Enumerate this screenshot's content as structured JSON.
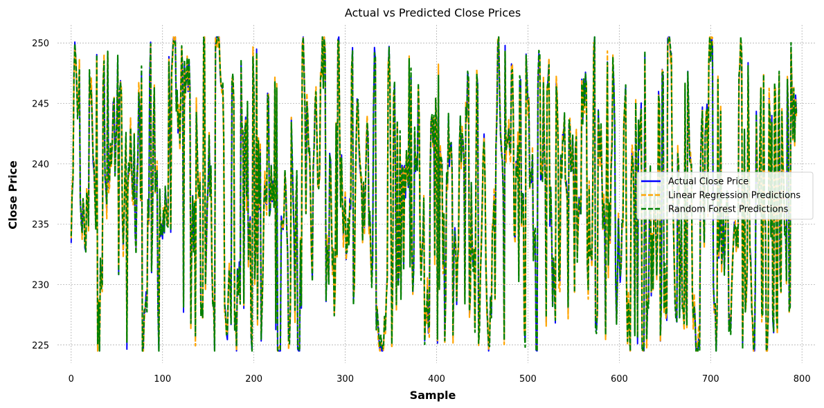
{
  "chart_data": {
    "type": "line",
    "title": "Actual vs Predicted Close Prices",
    "xlabel": "Sample",
    "ylabel": "Close Price",
    "xlim": [
      -15,
      815
    ],
    "ylim": [
      223.5,
      251.5
    ],
    "xticks": [
      0,
      100,
      200,
      300,
      400,
      500,
      600,
      700,
      800
    ],
    "yticks": [
      225,
      230,
      235,
      240,
      245,
      250
    ],
    "grid": true,
    "legend_position": "center-right",
    "n_samples": 795,
    "value_range": [
      224.5,
      250.5
    ],
    "series": [
      {
        "name": "Actual Close Price",
        "color": "#0000ff",
        "style": "solid"
      },
      {
        "name": "Linear Regression Predictions",
        "color": "#ffa500",
        "style": "dashed"
      },
      {
        "name": "Random Forest Predictions",
        "color": "#008000",
        "style": "dashed"
      }
    ]
  }
}
